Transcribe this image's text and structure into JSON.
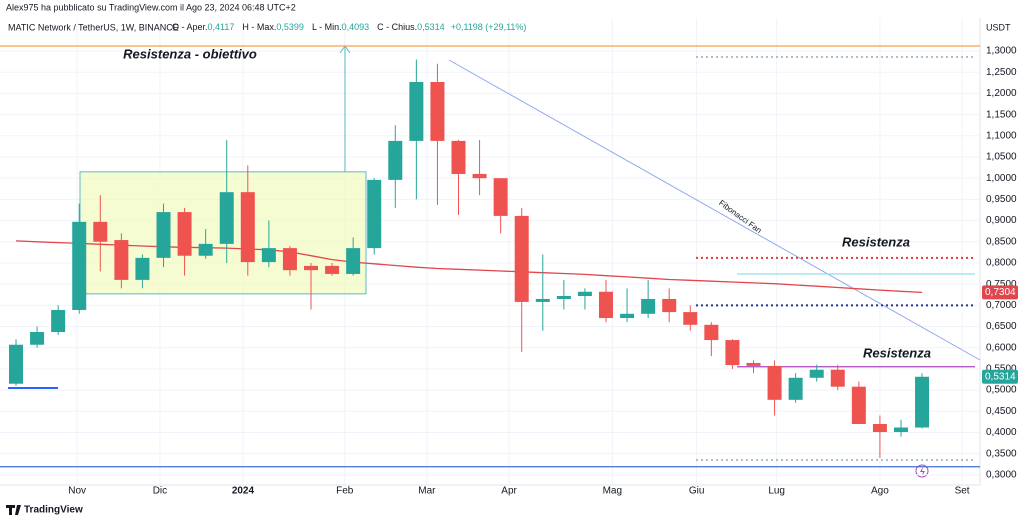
{
  "header": {
    "byline": "Alex975 ha pubblicato su TradingView.com il Ago 23, 2024 06:48 UTC+2",
    "symbol": "MATIC Network / TetherUS, 1W, BINANCE",
    "ohlc": [
      {
        "label": "O - Aper.",
        "value": "0,4117"
      },
      {
        "label": "H - Max.",
        "value": "0,5399"
      },
      {
        "label": "L - Min.",
        "value": "0,4093"
      },
      {
        "label": "C - Chius.",
        "value": "0,5314"
      }
    ],
    "change": "+0,1198 (+29,11%)"
  },
  "footer": {
    "brand": "TradingView"
  },
  "chart_data": {
    "type": "candlestick",
    "currency": "USDT",
    "categories": [
      null,
      null,
      null,
      null,
      null,
      null,
      null,
      null,
      null,
      null,
      null,
      null,
      null,
      null,
      null,
      null,
      null,
      null,
      null,
      null,
      null,
      null,
      null,
      null,
      null,
      null,
      null,
      null,
      null,
      null,
      null,
      null,
      null,
      null,
      null,
      null,
      null,
      null,
      null,
      null,
      null,
      null,
      null,
      null
    ],
    "open": [
      0.515,
      0.607,
      0.637,
      0.689,
      0.897,
      0.854,
      0.76,
      0.812,
      0.92,
      0.817,
      0.845,
      0.967,
      0.802,
      0.835,
      0.793,
      0.793,
      0.774,
      0.835,
      0.996,
      1.088,
      1.227,
      1.088,
      1.01,
      1.0,
      0.911,
      0.708,
      0.715,
      0.722,
      0.732,
      0.67,
      0.68,
      0.715,
      0.684,
      0.654,
      0.618,
      0.564,
      0.557,
      0.477,
      0.529,
      0.548,
      0.508,
      0.42,
      0.401,
      0.4117
    ],
    "high": [
      0.62,
      0.65,
      0.7,
      0.94,
      0.96,
      0.87,
      0.82,
      0.94,
      0.93,
      0.88,
      1.09,
      1.03,
      0.9,
      0.84,
      0.8,
      0.8,
      0.86,
      1.0,
      1.125,
      1.28,
      1.27,
      1.09,
      1.09,
      1.0,
      0.93,
      0.82,
      0.76,
      0.74,
      0.76,
      0.74,
      0.76,
      0.74,
      0.7,
      0.66,
      0.62,
      0.57,
      0.57,
      0.54,
      0.56,
      0.56,
      0.52,
      0.44,
      0.43,
      0.5399
    ],
    "low": [
      0.51,
      0.6,
      0.63,
      0.68,
      0.78,
      0.74,
      0.74,
      0.79,
      0.77,
      0.81,
      0.8,
      0.77,
      0.79,
      0.77,
      0.69,
      0.77,
      0.77,
      0.82,
      0.93,
      0.95,
      0.937,
      0.913,
      0.96,
      0.87,
      0.59,
      0.64,
      0.69,
      0.69,
      0.66,
      0.66,
      0.67,
      0.66,
      0.64,
      0.58,
      0.55,
      0.54,
      0.44,
      0.47,
      0.52,
      0.5,
      0.42,
      0.34,
      0.39,
      0.4093
    ],
    "close": [
      0.607,
      0.637,
      0.689,
      0.897,
      0.85,
      0.76,
      0.812,
      0.92,
      0.817,
      0.845,
      0.967,
      0.802,
      0.835,
      0.783,
      0.783,
      0.774,
      0.835,
      0.996,
      1.088,
      1.227,
      1.088,
      1.01,
      1.0,
      0.911,
      0.708,
      0.715,
      0.722,
      0.732,
      0.67,
      0.68,
      0.715,
      0.684,
      0.654,
      0.618,
      0.559,
      0.557,
      0.477,
      0.529,
      0.548,
      0.508,
      0.42,
      0.401,
      0.4117,
      0.5314
    ],
    "ma": [
      0.852,
      0.85,
      0.848,
      0.846,
      0.844,
      0.842,
      0.84,
      0.838,
      0.837,
      0.836,
      0.835,
      0.833,
      0.831,
      0.826,
      0.817,
      0.808,
      0.802,
      0.798,
      0.794,
      0.79,
      0.787,
      0.785,
      0.783,
      0.781,
      0.779,
      0.777,
      0.775,
      0.773,
      0.77,
      0.767,
      0.764,
      0.761,
      0.759,
      0.757,
      0.755,
      0.753,
      0.751,
      0.748,
      0.745,
      0.742,
      0.739,
      0.736,
      0.733,
      0.7304
    ],
    "ma_label": "0,7304",
    "last_label": "0,5314",
    "up_color": "#26a69a",
    "down_color": "#ef5350",
    "ma_color": "#e0474c",
    "xlim": [
      -0.76,
      45.75
    ],
    "ylim": [
      0.276,
      1.378
    ],
    "xticks": [
      {
        "value": 2.9,
        "label": "Nov"
      },
      {
        "value": 6.83,
        "label": "Dic"
      },
      {
        "value": 10.77,
        "label": "2024"
      },
      {
        "value": 15.6,
        "label": "Feb"
      },
      {
        "value": 19.5,
        "label": "Mar"
      },
      {
        "value": 23.4,
        "label": "Apr"
      },
      {
        "value": 28.3,
        "label": "Mag"
      },
      {
        "value": 32.3,
        "label": "Giu"
      },
      {
        "value": 36.1,
        "label": "Lug"
      },
      {
        "value": 41,
        "label": "Ago"
      },
      {
        "value": 44.9,
        "label": "Set"
      }
    ],
    "yticks": [
      {
        "value": 0.3,
        "label": "0,3000"
      },
      {
        "value": 0.35,
        "label": "0,3500"
      },
      {
        "value": 0.4,
        "label": "0,4000"
      },
      {
        "value": 0.45,
        "label": "0,4500"
      },
      {
        "value": 0.5,
        "label": "0,5000"
      },
      {
        "value": 0.55,
        "label": "0,5500"
      },
      {
        "value": 0.6,
        "label": "0,6000"
      },
      {
        "value": 0.65,
        "label": "0,6500"
      },
      {
        "value": 0.7,
        "label": "0,7000"
      },
      {
        "value": 0.75,
        "label": "0,7500"
      },
      {
        "value": 0.8,
        "label": "0,8000"
      },
      {
        "value": 0.85,
        "label": "0,8500"
      },
      {
        "value": 0.9,
        "label": "0,9000"
      },
      {
        "value": 0.95,
        "label": "0,9500"
      },
      {
        "value": 1.0,
        "label": "1,0000"
      },
      {
        "value": 1.05,
        "label": "1,0500"
      },
      {
        "value": 1.1,
        "label": "1,1000"
      },
      {
        "value": 1.15,
        "label": "1,1500"
      },
      {
        "value": 1.2,
        "label": "1,2000"
      },
      {
        "value": 1.25,
        "label": "1,2500"
      },
      {
        "value": 1.3,
        "label": "1,3000"
      }
    ],
    "grid": true,
    "levels": [
      {
        "value": 1.312,
        "color": "#f5a04a",
        "style": "solid"
      },
      {
        "value": 0.319,
        "color": "#3f6fd8",
        "style": "solid"
      },
      {
        "value": 0.812,
        "color": "#e53935",
        "style": "dotted"
      },
      {
        "value": 0.7,
        "color": "#283593",
        "style": "dotted"
      },
      {
        "value": 0.555,
        "color": "#ab47bc",
        "style": "solid"
      },
      {
        "value": 0.774,
        "color": "#80deea",
        "style": "solid"
      },
      {
        "value": 1.286,
        "color": "#b0bec5",
        "style": "dotted"
      },
      {
        "value": 0.335,
        "color": "#b0bec5",
        "style": "dotted"
      },
      {
        "value": 0.505,
        "color": "#2962ff",
        "style": "solid"
      }
    ],
    "annotations": [
      {
        "text": "Resistenza - obiettivo",
        "color": "#4fc3d0"
      },
      {
        "text": "Resistenza",
        "color": "#c62828"
      },
      {
        "text": "Resistenza",
        "color": "#ab47bc"
      },
      {
        "text": "Fibonacci Fan",
        "color": "#5c7fd6"
      }
    ]
  }
}
